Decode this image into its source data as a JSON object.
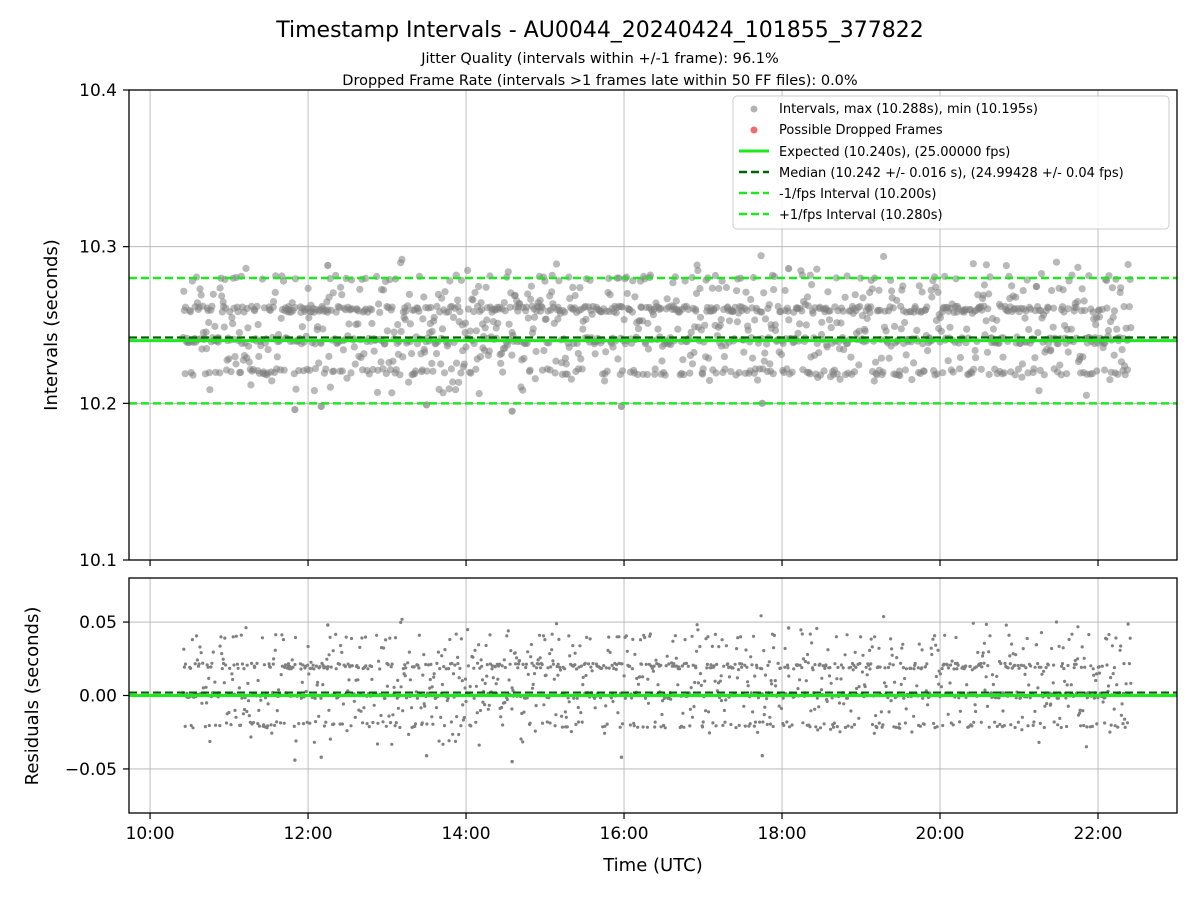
{
  "figure": {
    "title": "Timestamp Intervals - AU0044_20240424_101855_377822",
    "subtitle_1": "Jitter Quality (intervals within +/-1 frame): 96.1%",
    "subtitle_2": "Dropped Frame Rate (intervals >1 frames late within 50 FF files): 0.0%",
    "xlabel": "Time (UTC)"
  },
  "colors": {
    "scatter": "#808080",
    "dropped": "#e8474b",
    "expected": "#1ee81e",
    "median": "#006400",
    "interval": "#1ee81e",
    "grid": "#b0b0b0"
  },
  "chart_data": [
    {
      "type": "scatter",
      "ylabel": "Intervals (seconds)",
      "ylim": [
        10.1,
        10.4
      ],
      "xlim": [
        "09:44",
        "23:00"
      ],
      "x_ticks": [
        "10:00",
        "12:00",
        "14:00",
        "16:00",
        "18:00",
        "20:00",
        "22:00"
      ],
      "y_ticks": [
        "10.1",
        "10.2",
        "10.3",
        "10.4"
      ],
      "grid": true,
      "legend_position": "top-right",
      "legend": [
        "Intervals, max (10.288s), min (10.195s)",
        "Possible Dropped Frames",
        "Expected (10.240s), (25.00000 fps)",
        "Median (10.242 +/- 0.016 s), (24.99428 +/- 0.04 fps)",
        "-1/fps Interval (10.200s)",
        "+1/fps Interval (10.280s)"
      ],
      "x_range_points": [
        "10:25",
        "22:25"
      ],
      "interval_levels": [
        10.22,
        10.24,
        10.26,
        10.28
      ],
      "level_weights": [
        0.2,
        0.33,
        0.37,
        0.1
      ],
      "max": 10.288,
      "min": 10.195,
      "expected": 10.24,
      "median": 10.242,
      "minus_interval": 10.2,
      "plus_interval": 10.28,
      "outliers": [
        {
          "x": "11:50",
          "y": 10.196
        },
        {
          "x": "12:10",
          "y": 10.198
        },
        {
          "x": "13:30",
          "y": 10.199
        },
        {
          "x": "14:35",
          "y": 10.195
        },
        {
          "x": "15:58",
          "y": 10.198
        },
        {
          "x": "17:45",
          "y": 10.2
        },
        {
          "x": "12:15",
          "y": 10.288
        },
        {
          "x": "18:05",
          "y": 10.286
        }
      ]
    },
    {
      "type": "scatter",
      "ylabel": "Residuals (seconds)",
      "ylim": [
        -0.08,
        0.08
      ],
      "y_ticks": [
        "−0.05",
        "0.00",
        "0.05"
      ],
      "y_tick_values": [
        -0.05,
        0.0,
        0.05
      ],
      "grid": true,
      "residual_levels": [
        -0.02,
        0.0,
        0.02,
        0.04
      ],
      "expected_line": 0.0,
      "median_line": 0.002,
      "outliers": [
        {
          "x": "11:50",
          "y": -0.044
        },
        {
          "x": "12:10",
          "y": -0.042
        },
        {
          "x": "13:30",
          "y": -0.041
        },
        {
          "x": "14:35",
          "y": -0.045
        },
        {
          "x": "15:58",
          "y": -0.042
        },
        {
          "x": "17:45",
          "y": -0.041
        },
        {
          "x": "12:15",
          "y": 0.048
        },
        {
          "x": "18:05",
          "y": 0.046
        }
      ]
    }
  ]
}
